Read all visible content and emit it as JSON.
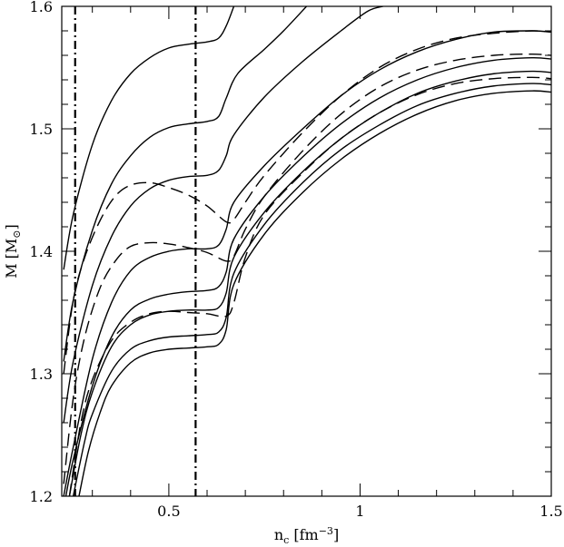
{
  "chart_data": {
    "type": "line",
    "xlabel_main": "n",
    "xlabel_sub": "c",
    "xlabel_rest": " [fm",
    "xlabel_sup": "−3",
    "xlabel_end": "]",
    "ylabel_main": "M  [M",
    "ylabel_sub": "⊙",
    "ylabel_end": "]",
    "xlim": [
      0.22,
      1.5
    ],
    "ylim": [
      1.2,
      1.6
    ],
    "xticks": [
      {
        "v": 0.5,
        "label": "0.5"
      },
      {
        "v": 1.0,
        "label": "1"
      },
      {
        "v": 1.5,
        "label": "1.5"
      }
    ],
    "yticks": [
      {
        "v": 1.2,
        "label": "1.2"
      },
      {
        "v": 1.3,
        "label": "1.3"
      },
      {
        "v": 1.4,
        "label": "1.4"
      },
      {
        "v": 1.5,
        "label": "1.5"
      },
      {
        "v": 1.6,
        "label": "1.6"
      }
    ],
    "vlines": [
      0.255,
      0.57
    ],
    "series": [
      {
        "style": "solid",
        "points": [
          [
            0.225,
            1.385
          ],
          [
            0.25,
            1.43
          ],
          [
            0.3,
            1.487
          ],
          [
            0.35,
            1.523
          ],
          [
            0.4,
            1.545
          ],
          [
            0.45,
            1.558
          ],
          [
            0.5,
            1.566
          ],
          [
            0.55,
            1.569
          ],
          [
            0.6,
            1.571
          ],
          [
            0.63,
            1.574
          ],
          [
            0.65,
            1.584
          ],
          [
            0.67,
            1.6
          ]
        ]
      },
      {
        "style": "solid",
        "points": [
          [
            0.225,
            1.31
          ],
          [
            0.25,
            1.36
          ],
          [
            0.3,
            1.417
          ],
          [
            0.35,
            1.455
          ],
          [
            0.4,
            1.478
          ],
          [
            0.45,
            1.493
          ],
          [
            0.5,
            1.501
          ],
          [
            0.55,
            1.504
          ],
          [
            0.6,
            1.506
          ],
          [
            0.63,
            1.51
          ],
          [
            0.65,
            1.525
          ],
          [
            0.68,
            1.545
          ],
          [
            0.75,
            1.565
          ],
          [
            0.8,
            1.58
          ],
          [
            0.86,
            1.6
          ]
        ]
      },
      {
        "style": "solid",
        "points": [
          [
            0.225,
            1.26
          ],
          [
            0.25,
            1.31
          ],
          [
            0.3,
            1.372
          ],
          [
            0.35,
            1.412
          ],
          [
            0.4,
            1.437
          ],
          [
            0.45,
            1.451
          ],
          [
            0.5,
            1.458
          ],
          [
            0.55,
            1.461
          ],
          [
            0.6,
            1.462
          ],
          [
            0.63,
            1.466
          ],
          [
            0.65,
            1.478
          ],
          [
            0.67,
            1.495
          ],
          [
            0.75,
            1.526
          ],
          [
            0.85,
            1.555
          ],
          [
            0.95,
            1.58
          ],
          [
            1.02,
            1.596
          ],
          [
            1.06,
            1.6
          ]
        ]
      },
      {
        "style": "solid",
        "points": [
          [
            0.225,
            1.2
          ],
          [
            0.25,
            1.24
          ],
          [
            0.3,
            1.312
          ],
          [
            0.35,
            1.358
          ],
          [
            0.4,
            1.384
          ],
          [
            0.45,
            1.395
          ],
          [
            0.5,
            1.4
          ],
          [
            0.55,
            1.402
          ],
          [
            0.6,
            1.402
          ],
          [
            0.63,
            1.405
          ],
          [
            0.65,
            1.418
          ],
          [
            0.67,
            1.44
          ],
          [
            0.75,
            1.47
          ],
          [
            0.85,
            1.5
          ],
          [
            0.95,
            1.527
          ],
          [
            1.05,
            1.548
          ],
          [
            1.15,
            1.563
          ],
          [
            1.25,
            1.573
          ],
          [
            1.35,
            1.579
          ],
          [
            1.45,
            1.58
          ],
          [
            1.5,
            1.579
          ]
        ]
      },
      {
        "style": "solid",
        "points": [
          [
            0.225,
            1.19
          ],
          [
            0.25,
            1.23
          ],
          [
            0.3,
            1.29
          ],
          [
            0.35,
            1.33
          ],
          [
            0.4,
            1.352
          ],
          [
            0.45,
            1.361
          ],
          [
            0.5,
            1.365
          ],
          [
            0.55,
            1.367
          ],
          [
            0.6,
            1.368
          ],
          [
            0.63,
            1.371
          ],
          [
            0.65,
            1.383
          ],
          [
            0.67,
            1.41
          ],
          [
            0.75,
            1.445
          ],
          [
            0.85,
            1.477
          ],
          [
            0.95,
            1.504
          ],
          [
            1.05,
            1.525
          ],
          [
            1.15,
            1.54
          ],
          [
            1.25,
            1.55
          ],
          [
            1.35,
            1.556
          ],
          [
            1.45,
            1.558
          ],
          [
            1.5,
            1.557
          ]
        ]
      },
      {
        "style": "solid",
        "points": [
          [
            0.24,
            1.2
          ],
          [
            0.27,
            1.25
          ],
          [
            0.3,
            1.285
          ],
          [
            0.35,
            1.322
          ],
          [
            0.4,
            1.34
          ],
          [
            0.45,
            1.348
          ],
          [
            0.5,
            1.351
          ],
          [
            0.55,
            1.352
          ],
          [
            0.6,
            1.352
          ],
          [
            0.63,
            1.354
          ],
          [
            0.65,
            1.366
          ],
          [
            0.67,
            1.395
          ],
          [
            0.75,
            1.432
          ],
          [
            0.85,
            1.465
          ],
          [
            0.95,
            1.492
          ],
          [
            1.05,
            1.513
          ],
          [
            1.15,
            1.529
          ],
          [
            1.25,
            1.539
          ],
          [
            1.35,
            1.545
          ],
          [
            1.45,
            1.547
          ],
          [
            1.5,
            1.546
          ]
        ]
      },
      {
        "style": "solid",
        "points": [
          [
            0.25,
            1.2
          ],
          [
            0.28,
            1.245
          ],
          [
            0.3,
            1.267
          ],
          [
            0.35,
            1.302
          ],
          [
            0.4,
            1.32
          ],
          [
            0.45,
            1.327
          ],
          [
            0.5,
            1.33
          ],
          [
            0.55,
            1.331
          ],
          [
            0.6,
            1.332
          ],
          [
            0.63,
            1.334
          ],
          [
            0.65,
            1.346
          ],
          [
            0.67,
            1.382
          ],
          [
            0.75,
            1.422
          ],
          [
            0.85,
            1.456
          ],
          [
            0.95,
            1.483
          ],
          [
            1.05,
            1.503
          ],
          [
            1.15,
            1.519
          ],
          [
            1.25,
            1.529
          ],
          [
            1.35,
            1.535
          ],
          [
            1.45,
            1.537
          ],
          [
            1.5,
            1.536
          ]
        ]
      },
      {
        "style": "solid",
        "points": [
          [
            0.265,
            1.2
          ],
          [
            0.29,
            1.237
          ],
          [
            0.32,
            1.268
          ],
          [
            0.35,
            1.29
          ],
          [
            0.4,
            1.309
          ],
          [
            0.45,
            1.317
          ],
          [
            0.5,
            1.32
          ],
          [
            0.55,
            1.321
          ],
          [
            0.6,
            1.322
          ],
          [
            0.63,
            1.324
          ],
          [
            0.65,
            1.336
          ],
          [
            0.67,
            1.373
          ],
          [
            0.75,
            1.414
          ],
          [
            0.85,
            1.448
          ],
          [
            0.95,
            1.475
          ],
          [
            1.05,
            1.496
          ],
          [
            1.15,
            1.512
          ],
          [
            1.25,
            1.523
          ],
          [
            1.35,
            1.529
          ],
          [
            1.45,
            1.531
          ],
          [
            1.5,
            1.53
          ]
        ]
      },
      {
        "style": "dashed",
        "points": [
          [
            0.225,
            1.3
          ],
          [
            0.25,
            1.36
          ],
          [
            0.28,
            1.395
          ],
          [
            0.32,
            1.425
          ],
          [
            0.36,
            1.445
          ],
          [
            0.4,
            1.454
          ],
          [
            0.45,
            1.456
          ],
          [
            0.5,
            1.452
          ],
          [
            0.55,
            1.446
          ],
          [
            0.6,
            1.437
          ],
          [
            0.65,
            1.424
          ],
          [
            0.67,
            1.426
          ],
          [
            0.7,
            1.44
          ],
          [
            0.75,
            1.462
          ],
          [
            0.85,
            1.497
          ],
          [
            0.95,
            1.527
          ],
          [
            1.05,
            1.55
          ],
          [
            1.15,
            1.565
          ],
          [
            1.25,
            1.574
          ],
          [
            1.35,
            1.578
          ],
          [
            1.45,
            1.58
          ],
          [
            1.5,
            1.579
          ]
        ]
      },
      {
        "style": "dashed",
        "points": [
          [
            0.225,
            1.21
          ],
          [
            0.25,
            1.28
          ],
          [
            0.28,
            1.33
          ],
          [
            0.32,
            1.37
          ],
          [
            0.36,
            1.392
          ],
          [
            0.4,
            1.404
          ],
          [
            0.45,
            1.407
          ],
          [
            0.5,
            1.406
          ],
          [
            0.55,
            1.403
          ],
          [
            0.6,
            1.399
          ],
          [
            0.65,
            1.392
          ],
          [
            0.67,
            1.396
          ],
          [
            0.7,
            1.418
          ],
          [
            0.75,
            1.445
          ],
          [
            0.85,
            1.482
          ],
          [
            0.95,
            1.512
          ],
          [
            1.05,
            1.534
          ],
          [
            1.15,
            1.548
          ],
          [
            1.25,
            1.556
          ],
          [
            1.35,
            1.56
          ],
          [
            1.45,
            1.561
          ],
          [
            1.5,
            1.56
          ]
        ]
      },
      {
        "style": "dashed",
        "points": [
          [
            0.24,
            1.2
          ],
          [
            0.27,
            1.26
          ],
          [
            0.3,
            1.295
          ],
          [
            0.35,
            1.327
          ],
          [
            0.4,
            1.342
          ],
          [
            0.45,
            1.349
          ],
          [
            0.5,
            1.351
          ],
          [
            0.55,
            1.35
          ],
          [
            0.6,
            1.349
          ],
          [
            0.65,
            1.347
          ],
          [
            0.67,
            1.358
          ],
          [
            0.7,
            1.395
          ],
          [
            0.75,
            1.43
          ],
          [
            0.85,
            1.464
          ],
          [
            0.95,
            1.492
          ],
          [
            1.05,
            1.513
          ],
          [
            1.15,
            1.528
          ],
          [
            1.25,
            1.537
          ],
          [
            1.35,
            1.541
          ],
          [
            1.45,
            1.542
          ],
          [
            1.5,
            1.541
          ]
        ]
      }
    ]
  }
}
